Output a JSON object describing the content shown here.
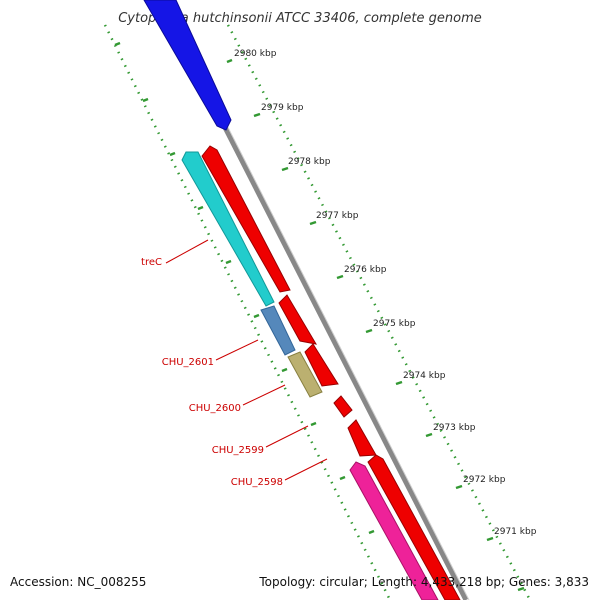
{
  "map": {
    "title": "Cytophaga hutchinsonii ATCC 33406, complete genome",
    "accession": "Accession: NC_008255",
    "summary": "Topology: circular; Length: 4,433,218 bp; Genes: 3,833"
  },
  "colors": {
    "forward_cds": "#ee0000",
    "reverse_blue": "#1515e6",
    "reverse_cyan": "#22cccc",
    "reverse_steel": "#5588bb",
    "reverse_khaki": "#bbb070",
    "reverse_pink": "#ee2299",
    "backbone": "#888888",
    "scale_dots": "#339933",
    "label_text": "#cc0000"
  },
  "ticks": [
    {
      "label": "2980 kbp"
    },
    {
      "label": "2979 kbp"
    },
    {
      "label": "2978 kbp"
    },
    {
      "label": "2977 kbp"
    },
    {
      "label": "2976 kbp"
    },
    {
      "label": "2975 kbp"
    },
    {
      "label": "2974 kbp"
    },
    {
      "label": "2973 kbp"
    },
    {
      "label": "2972 kbp"
    },
    {
      "label": "2971 kbp"
    }
  ],
  "gene_labels": [
    {
      "name": "treC"
    },
    {
      "name": "CHU_2601"
    },
    {
      "name": "CHU_2600"
    },
    {
      "name": "CHU_2599"
    },
    {
      "name": "CHU_2598"
    }
  ]
}
